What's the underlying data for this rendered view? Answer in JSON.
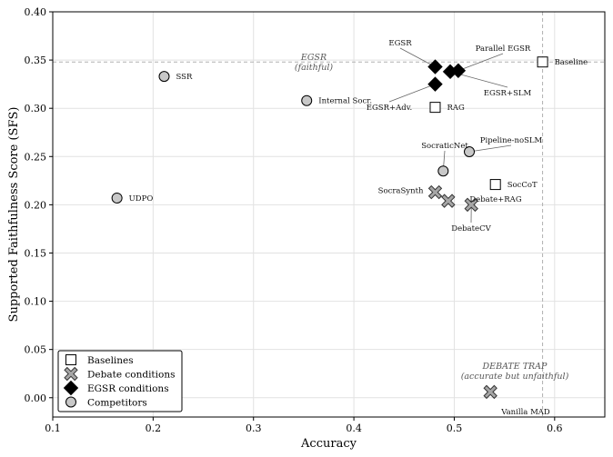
{
  "chart_data": {
    "type": "scatter",
    "title": "",
    "xlabel": "Accuracy",
    "ylabel": "Supported Faithfulness Score (SFS)",
    "xlim": [
      0.1,
      0.65
    ],
    "ylim": [
      -0.02,
      0.4
    ],
    "xticks": [
      "0.1",
      "0.2",
      "0.3",
      "0.4",
      "0.5",
      "0.6"
    ],
    "yticks": [
      "0.00",
      "0.05",
      "0.10",
      "0.15",
      "0.20",
      "0.25",
      "0.30",
      "0.35",
      "0.40"
    ],
    "grid": true,
    "legend_position": "bottom-left",
    "reference_lines": {
      "x": 0.588,
      "y": 0.348
    },
    "series": [
      {
        "name": "Baselines",
        "marker": "square",
        "color": "#ffffff",
        "points": [
          {
            "label": "Baseline",
            "x": 0.588,
            "y": 0.348
          },
          {
            "label": "RAG",
            "x": 0.481,
            "y": 0.301
          },
          {
            "label": "SocCoT",
            "x": 0.541,
            "y": 0.221
          }
        ]
      },
      {
        "name": "Debate conditions",
        "marker": "x-filled",
        "color": "#a6a6a6",
        "points": [
          {
            "label": "SocraSynth",
            "x": 0.481,
            "y": 0.213
          },
          {
            "label": "Debate+RAG",
            "x": 0.494,
            "y": 0.204
          },
          {
            "label": "DebateCV",
            "x": 0.517,
            "y": 0.2
          },
          {
            "label": "Vanilla MAD",
            "x": 0.536,
            "y": 0.006
          }
        ]
      },
      {
        "name": "EGSR conditions",
        "marker": "diamond",
        "color": "#000000",
        "points": [
          {
            "label": "EGSR",
            "x": 0.481,
            "y": 0.343
          },
          {
            "label": "Parallel EGSR",
            "x": 0.504,
            "y": 0.339
          },
          {
            "label": "EGSR+SLM",
            "x": 0.496,
            "y": 0.338
          },
          {
            "label": "EGSR+Adv.",
            "x": 0.481,
            "y": 0.325
          }
        ]
      },
      {
        "name": "Competitors",
        "marker": "circle",
        "color": "#c8c8c8",
        "points": [
          {
            "label": "SSR",
            "x": 0.211,
            "y": 0.333
          },
          {
            "label": "Internal Socr.",
            "x": 0.353,
            "y": 0.308
          },
          {
            "label": "UDPO",
            "x": 0.164,
            "y": 0.207
          },
          {
            "label": "SocraticNet",
            "x": 0.489,
            "y": 0.235
          },
          {
            "label": "Pipeline-noSLM",
            "x": 0.515,
            "y": 0.255
          }
        ]
      }
    ],
    "annotations": [
      {
        "id": "egsr",
        "lines": [
          "EGSR",
          "(faithful)"
        ]
      },
      {
        "id": "debate-trap",
        "lines": [
          "DEBATE TRAP",
          "(accurate but unfaithful)"
        ]
      }
    ]
  }
}
